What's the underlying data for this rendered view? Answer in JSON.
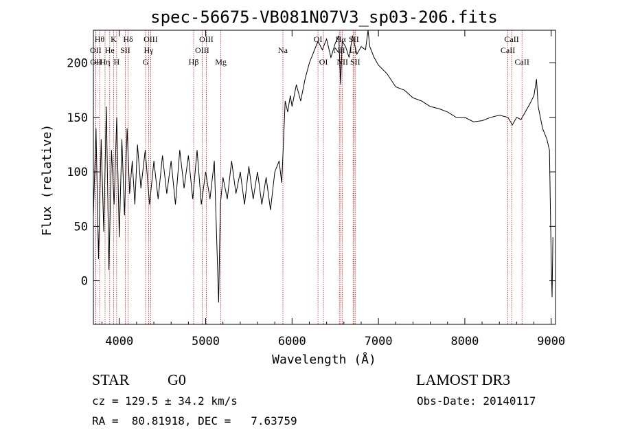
{
  "chart_data": {
    "type": "line",
    "title": "spec-56675-VB081N07V3_sp03-206.fits",
    "xlabel": "Wavelength (Å)",
    "ylabel": "Flux (relative)",
    "xlim": [
      3700,
      9050
    ],
    "ylim": [
      -40,
      230
    ],
    "xticks": [
      4000,
      5000,
      6000,
      7000,
      8000,
      9000
    ],
    "yticks": [
      0,
      50,
      100,
      150,
      200
    ],
    "grid": false,
    "line_color": "#000000",
    "marker_color": "#b22222",
    "series": [
      {
        "name": "flux",
        "x": [
          3700,
          3730,
          3760,
          3790,
          3820,
          3850,
          3880,
          3910,
          3940,
          3970,
          4000,
          4030,
          4060,
          4090,
          4120,
          4150,
          4180,
          4210,
          4250,
          4300,
          4350,
          4400,
          4450,
          4500,
          4550,
          4600,
          4650,
          4700,
          4750,
          4800,
          4850,
          4900,
          4950,
          5000,
          5050,
          5100,
          5150,
          5170,
          5200,
          5250,
          5300,
          5350,
          5400,
          5450,
          5500,
          5550,
          5600,
          5650,
          5700,
          5750,
          5800,
          5850,
          5880,
          5900,
          5920,
          5950,
          5980,
          6000,
          6050,
          6100,
          6150,
          6200,
          6250,
          6300,
          6350,
          6400,
          6450,
          6500,
          6540,
          6563,
          6580,
          6620,
          6660,
          6700,
          6750,
          6800,
          6850,
          6880,
          6900,
          6950,
          7000,
          7100,
          7200,
          7300,
          7400,
          7500,
          7600,
          7700,
          7800,
          7900,
          8000,
          8100,
          8200,
          8300,
          8400,
          8500,
          8550,
          8600,
          8650,
          8700,
          8750,
          8800,
          8830,
          8850,
          8900,
          8950,
          8980,
          9000,
          9010,
          9020
        ],
        "values": [
          60,
          140,
          20,
          130,
          45,
          160,
          10,
          120,
          70,
          150,
          40,
          130,
          60,
          140,
          80,
          110,
          70,
          125,
          85,
          120,
          70,
          110,
          75,
          115,
          80,
          110,
          70,
          120,
          85,
          115,
          75,
          120,
          70,
          100,
          75,
          110,
          -20,
          70,
          95,
          75,
          110,
          80,
          100,
          70,
          105,
          75,
          100,
          70,
          95,
          65,
          100,
          110,
          90,
          125,
          165,
          155,
          170,
          160,
          180,
          165,
          185,
          200,
          210,
          220,
          212,
          222,
          205,
          218,
          225,
          180,
          220,
          215,
          205,
          225,
          208,
          215,
          212,
          240,
          215,
          205,
          198,
          190,
          178,
          175,
          168,
          165,
          160,
          158,
          155,
          150,
          150,
          146,
          147,
          150,
          152,
          150,
          143,
          150,
          148,
          155,
          162,
          170,
          185,
          160,
          140,
          130,
          120,
          20,
          -15,
          40
        ]
      }
    ],
    "spectral_lines": [
      {
        "label": "OII",
        "wavelength": 3727,
        "row": 2
      },
      {
        "label": "OII",
        "wavelength": 3729,
        "row": 3
      },
      {
        "label": "Hθ",
        "wavelength": 3771,
        "row": 1
      },
      {
        "label": "Hη",
        "wavelength": 3835,
        "row": 3
      },
      {
        "label": "He",
        "wavelength": 3889,
        "row": 2
      },
      {
        "label": "K",
        "wavelength": 3934,
        "row": 1
      },
      {
        "label": "H",
        "wavelength": 3969,
        "row": 3
      },
      {
        "label": "SII",
        "wavelength": 4069,
        "row": 2
      },
      {
        "label": "Hδ",
        "wavelength": 4102,
        "row": 1
      },
      {
        "label": "G",
        "wavelength": 4304,
        "row": 3
      },
      {
        "label": "Hγ",
        "wavelength": 4340,
        "row": 2
      },
      {
        "label": "OIII",
        "wavelength": 4363,
        "row": 1
      },
      {
        "label": "Hβ",
        "wavelength": 4861,
        "row": 3
      },
      {
        "label": "OIII",
        "wavelength": 4959,
        "row": 2
      },
      {
        "label": "OIII",
        "wavelength": 5007,
        "row": 1
      },
      {
        "label": "Mg",
        "wavelength": 5175,
        "row": 3
      },
      {
        "label": "Na",
        "wavelength": 5894,
        "row": 2
      },
      {
        "label": "OI",
        "wavelength": 6300,
        "row": 1
      },
      {
        "label": "OI",
        "wavelength": 6364,
        "row": 3
      },
      {
        "label": "NII",
        "wavelength": 6548,
        "row": 2
      },
      {
        "label": "Hα",
        "wavelength": 6563,
        "row": 1
      },
      {
        "label": "NII",
        "wavelength": 6583,
        "row": 3
      },
      {
        "label": "Li",
        "wavelength": 6707,
        "row": 2
      },
      {
        "label": "SII",
        "wavelength": 6716,
        "row": 1
      },
      {
        "label": "SII",
        "wavelength": 6731,
        "row": 3
      },
      {
        "label": "CaII",
        "wavelength": 8498,
        "row": 2
      },
      {
        "label": "CaII",
        "wavelength": 8542,
        "row": 1
      },
      {
        "label": "CaII",
        "wavelength": 8662,
        "row": 3
      }
    ]
  },
  "info": {
    "object_class": "STAR",
    "subclass": "G0",
    "survey": "LAMOST DR3",
    "redshift_text": "cz = 129.5 ± 34.2 km/s",
    "obs_date_text": "Obs-Date: 20140117",
    "coords_text": "RA =  80.81918, DEC =   7.63759"
  }
}
